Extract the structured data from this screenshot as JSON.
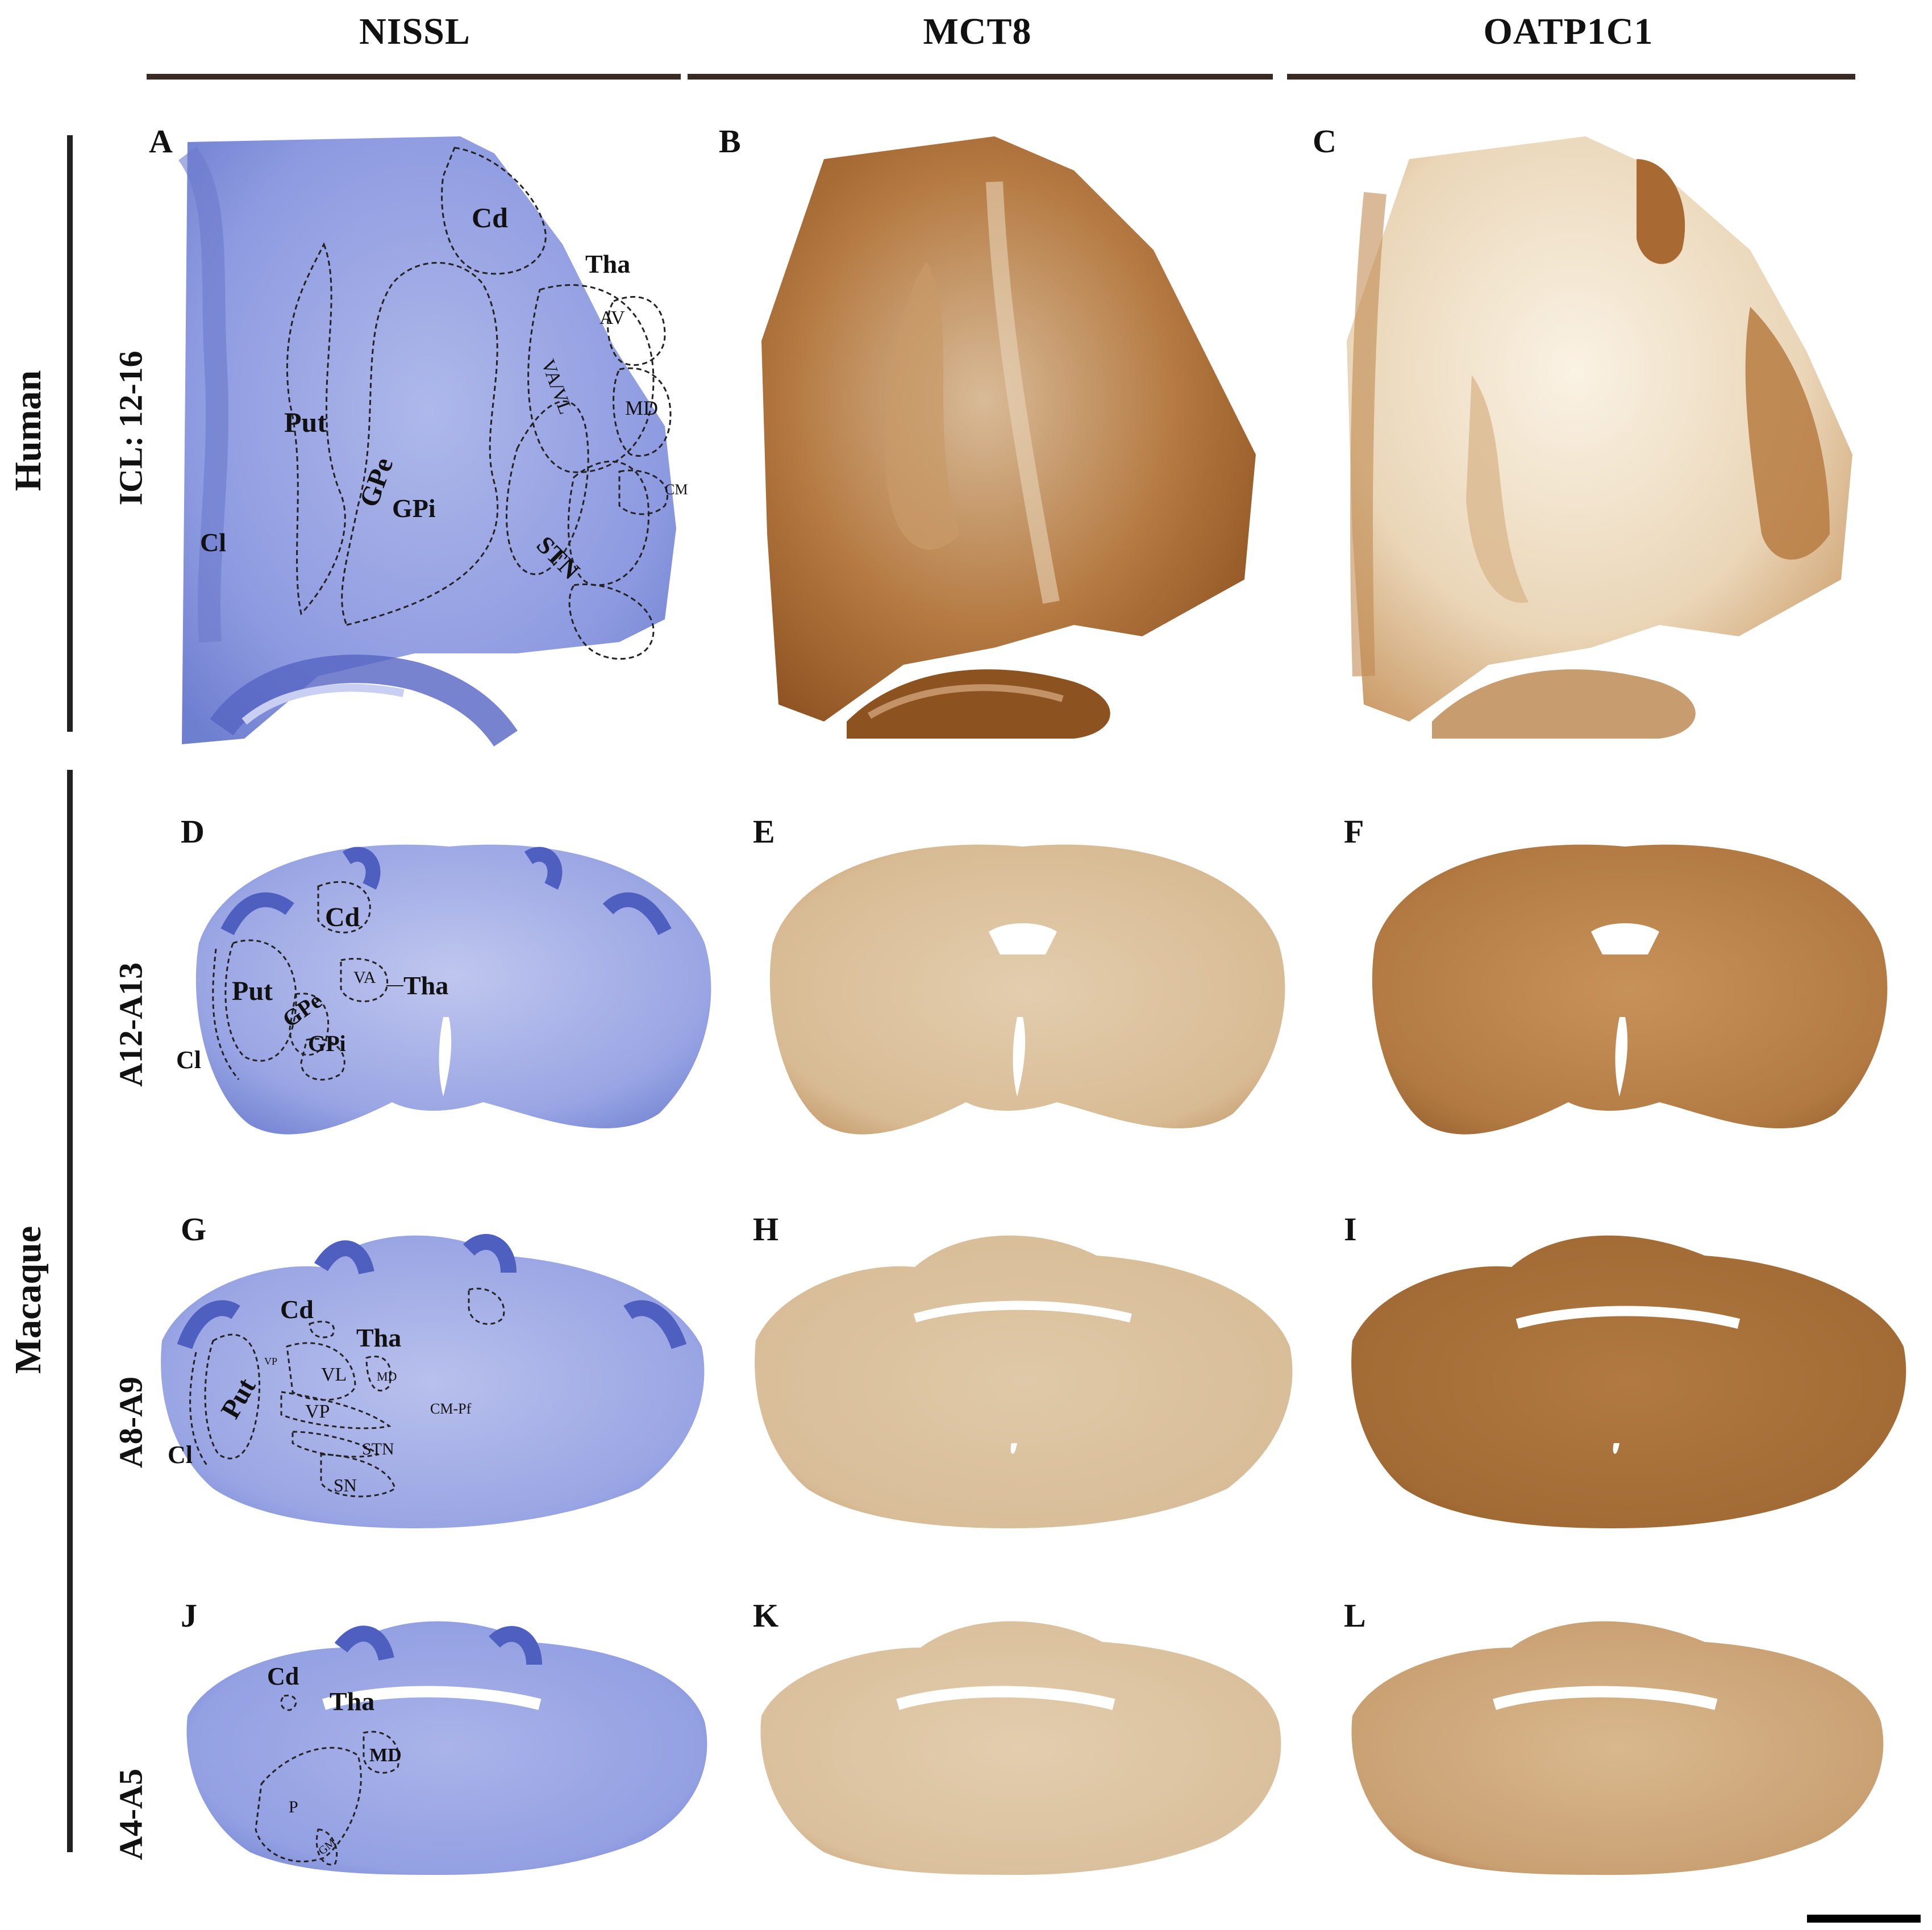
{
  "columns": [
    {
      "label": "NISSL"
    },
    {
      "label": "MCT8"
    },
    {
      "label": "OATP1C1"
    }
  ],
  "species": [
    {
      "label": "Human"
    },
    {
      "label": "Macaque"
    }
  ],
  "levels": [
    {
      "label": "ICL: 12-16"
    },
    {
      "label": "A12-A13"
    },
    {
      "label": "A8-A9"
    },
    {
      "label": "A4-A5"
    }
  ],
  "panels": [
    "A",
    "B",
    "C",
    "D",
    "E",
    "F",
    "G",
    "H",
    "I",
    "J",
    "K",
    "L"
  ],
  "regions": {
    "A": [
      "Cd",
      "Tha",
      "AV",
      "VA/VL",
      "MD",
      "Put",
      "GPe",
      "GPi",
      "CM-Pf",
      "Cl",
      "STN"
    ],
    "D": [
      "Cd",
      "Put",
      "VA",
      "Tha",
      "GPe",
      "GPi",
      "Cl"
    ],
    "G": [
      "Cd",
      "Tha",
      "VP",
      "VL",
      "MD",
      "Put",
      "VP",
      "CM-Pf",
      "STN",
      "Cl",
      "SN"
    ],
    "J": [
      "Cd",
      "Tha",
      "MD",
      "P",
      "GM"
    ]
  },
  "colors": {
    "nissl_base": "#7f8fd6",
    "nissl_light": "#c3caf0",
    "nissl_dark": "#4f5fc0",
    "mct8_base": "#a0622c",
    "mct8_light": "#dcc3a2",
    "oatp_base": "#a8672e",
    "oatp_light": "#f0e2cc"
  }
}
